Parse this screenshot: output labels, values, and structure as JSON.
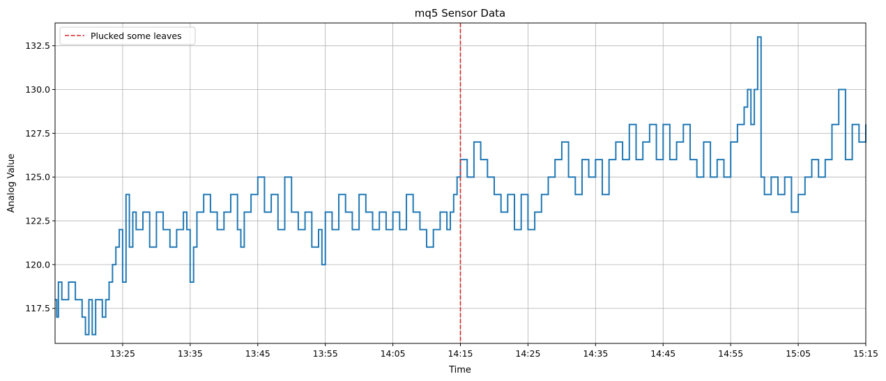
{
  "chart_data": {
    "type": "line",
    "title": "mq5 Sensor Data",
    "xlabel": "Time",
    "ylabel": "Analog Value",
    "x_ticks": [
      "13:25",
      "13:35",
      "13:45",
      "13:55",
      "14:05",
      "14:15",
      "14:25",
      "14:35",
      "14:45",
      "14:55",
      "15:05",
      "15:15"
    ],
    "y_ticks": [
      "117.5",
      "120.0",
      "122.5",
      "125.0",
      "127.5",
      "130.0",
      "132.5"
    ],
    "xlim": [
      "13:15",
      "15:15"
    ],
    "ylim": [
      115.5,
      133.8
    ],
    "grid": true,
    "legend_position": "top-left",
    "series": [
      {
        "name": "",
        "color": "#1f77b4",
        "points": [
          [
            "13:15:00",
            118
          ],
          [
            "13:15:15",
            117
          ],
          [
            "13:15:30",
            119
          ],
          [
            "13:16:00",
            118
          ],
          [
            "13:17:00",
            119
          ],
          [
            "13:18:00",
            118
          ],
          [
            "13:19:00",
            117
          ],
          [
            "13:19:30",
            116
          ],
          [
            "13:20:00",
            118
          ],
          [
            "13:20:30",
            116
          ],
          [
            "13:21:00",
            118
          ],
          [
            "13:22:00",
            117
          ],
          [
            "13:22:30",
            118
          ],
          [
            "13:23:00",
            119
          ],
          [
            "13:23:30",
            120
          ],
          [
            "13:24:00",
            121
          ],
          [
            "13:24:30",
            122
          ],
          [
            "13:25:00",
            119
          ],
          [
            "13:25:30",
            124
          ],
          [
            "13:26:00",
            121
          ],
          [
            "13:26:30",
            123
          ],
          [
            "13:27:00",
            122
          ],
          [
            "13:28:00",
            123
          ],
          [
            "13:29:00",
            121
          ],
          [
            "13:30:00",
            123
          ],
          [
            "13:31:00",
            122
          ],
          [
            "13:32:00",
            121
          ],
          [
            "13:33:00",
            122
          ],
          [
            "13:34:00",
            123
          ],
          [
            "13:34:30",
            122
          ],
          [
            "13:35:00",
            119
          ],
          [
            "13:35:30",
            121
          ],
          [
            "13:36:00",
            123
          ],
          [
            "13:37:00",
            124
          ],
          [
            "13:38:00",
            123
          ],
          [
            "13:39:00",
            122
          ],
          [
            "13:40:00",
            123
          ],
          [
            "13:41:00",
            124
          ],
          [
            "13:42:00",
            122
          ],
          [
            "13:42:30",
            121
          ],
          [
            "13:43:00",
            123
          ],
          [
            "13:44:00",
            124
          ],
          [
            "13:45:00",
            125
          ],
          [
            "13:46:00",
            123
          ],
          [
            "13:47:00",
            124
          ],
          [
            "13:48:00",
            122
          ],
          [
            "13:49:00",
            125
          ],
          [
            "13:50:00",
            123
          ],
          [
            "13:51:00",
            122
          ],
          [
            "13:52:00",
            123
          ],
          [
            "13:53:00",
            121
          ],
          [
            "13:54:00",
            122
          ],
          [
            "13:54:30",
            120
          ],
          [
            "13:55:00",
            123
          ],
          [
            "13:56:00",
            122
          ],
          [
            "13:57:00",
            124
          ],
          [
            "13:58:00",
            123
          ],
          [
            "13:59:00",
            122
          ],
          [
            "14:00:00",
            124
          ],
          [
            "14:01:00",
            123
          ],
          [
            "14:02:00",
            122
          ],
          [
            "14:03:00",
            123
          ],
          [
            "14:04:00",
            122
          ],
          [
            "14:05:00",
            123
          ],
          [
            "14:06:00",
            122
          ],
          [
            "14:07:00",
            124
          ],
          [
            "14:08:00",
            123
          ],
          [
            "14:09:00",
            122
          ],
          [
            "14:10:00",
            121
          ],
          [
            "14:11:00",
            122
          ],
          [
            "14:12:00",
            123
          ],
          [
            "14:13:00",
            122
          ],
          [
            "14:13:30",
            123
          ],
          [
            "14:14:00",
            124
          ],
          [
            "14:14:30",
            125
          ],
          [
            "14:15:00",
            126
          ],
          [
            "14:16:00",
            125
          ],
          [
            "14:17:00",
            127
          ],
          [
            "14:18:00",
            126
          ],
          [
            "14:19:00",
            125
          ],
          [
            "14:20:00",
            124
          ],
          [
            "14:21:00",
            123
          ],
          [
            "14:22:00",
            124
          ],
          [
            "14:23:00",
            122
          ],
          [
            "14:24:00",
            124
          ],
          [
            "14:25:00",
            122
          ],
          [
            "14:26:00",
            123
          ],
          [
            "14:27:00",
            124
          ],
          [
            "14:28:00",
            125
          ],
          [
            "14:29:00",
            126
          ],
          [
            "14:30:00",
            127
          ],
          [
            "14:31:00",
            125
          ],
          [
            "14:32:00",
            124
          ],
          [
            "14:33:00",
            126
          ],
          [
            "14:34:00",
            125
          ],
          [
            "14:35:00",
            126
          ],
          [
            "14:36:00",
            124
          ],
          [
            "14:37:00",
            126
          ],
          [
            "14:38:00",
            127
          ],
          [
            "14:39:00",
            126
          ],
          [
            "14:40:00",
            128
          ],
          [
            "14:41:00",
            126
          ],
          [
            "14:42:00",
            127
          ],
          [
            "14:43:00",
            128
          ],
          [
            "14:44:00",
            126
          ],
          [
            "14:45:00",
            128
          ],
          [
            "14:46:00",
            126
          ],
          [
            "14:47:00",
            127
          ],
          [
            "14:48:00",
            128
          ],
          [
            "14:49:00",
            126
          ],
          [
            "14:50:00",
            125
          ],
          [
            "14:51:00",
            127
          ],
          [
            "14:52:00",
            125
          ],
          [
            "14:53:00",
            126
          ],
          [
            "14:54:00",
            125
          ],
          [
            "14:55:00",
            127
          ],
          [
            "14:56:00",
            128
          ],
          [
            "14:57:00",
            129
          ],
          [
            "14:57:30",
            130
          ],
          [
            "14:58:00",
            128
          ],
          [
            "14:58:30",
            130
          ],
          [
            "14:59:00",
            133
          ],
          [
            "14:59:30",
            125
          ],
          [
            "15:00:00",
            124
          ],
          [
            "15:01:00",
            125
          ],
          [
            "15:02:00",
            124
          ],
          [
            "15:03:00",
            125
          ],
          [
            "15:04:00",
            123
          ],
          [
            "15:05:00",
            124
          ],
          [
            "15:06:00",
            125
          ],
          [
            "15:07:00",
            126
          ],
          [
            "15:08:00",
            125
          ],
          [
            "15:09:00",
            126
          ],
          [
            "15:10:00",
            128
          ],
          [
            "15:11:00",
            130
          ],
          [
            "15:12:00",
            126
          ],
          [
            "15:13:00",
            128
          ],
          [
            "15:14:00",
            127
          ],
          [
            "15:15:00",
            128
          ]
        ]
      }
    ],
    "vertical_line": {
      "x": "14:15",
      "label": "Plucked some leaves",
      "color": "#d62728",
      "style": "dashed"
    }
  }
}
